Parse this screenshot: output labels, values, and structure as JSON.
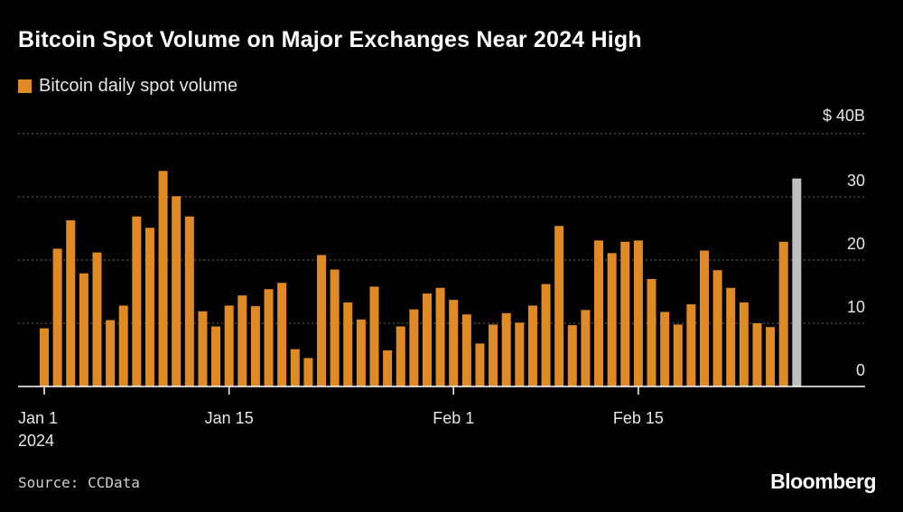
{
  "header": {
    "title": "Bitcoin Spot Volume on Major Exchanges Near 2024 High"
  },
  "legend": {
    "label": "Bitcoin daily spot volume"
  },
  "footer": {
    "source": "Source: CCData",
    "brand": "Bloomberg"
  },
  "colors": {
    "bar": "#e08a25",
    "highlight": "#c0c0c0",
    "grid": "#666666",
    "axis": "#ffffff",
    "text": "#e6e6e6"
  },
  "chart_data": {
    "type": "bar",
    "title": "Bitcoin Spot Volume on Major Exchanges Near 2024 High",
    "xlabel": "",
    "ylabel": "",
    "unit": "$B",
    "ylim": [
      0,
      40
    ],
    "yticks": [
      {
        "value": 40,
        "label": "$ 40B"
      },
      {
        "value": 30,
        "label": "30"
      },
      {
        "value": 20,
        "label": "20"
      },
      {
        "value": 10,
        "label": "10"
      },
      {
        "value": 0,
        "label": "0"
      }
    ],
    "xticks": [
      {
        "index": 0,
        "label": "Jan 1",
        "sublabel": "2024"
      },
      {
        "index": 14,
        "label": "Jan 15"
      },
      {
        "index": 31,
        "label": "Feb 1"
      },
      {
        "index": 45,
        "label": "Feb 15"
      }
    ],
    "categories": [
      "Jan 1",
      "Jan 2",
      "Jan 3",
      "Jan 4",
      "Jan 5",
      "Jan 6",
      "Jan 7",
      "Jan 8",
      "Jan 9",
      "Jan 10",
      "Jan 11",
      "Jan 12",
      "Jan 13",
      "Jan 14",
      "Jan 15",
      "Jan 16",
      "Jan 17",
      "Jan 18",
      "Jan 19",
      "Jan 20",
      "Jan 21",
      "Jan 22",
      "Jan 23",
      "Jan 24",
      "Jan 25",
      "Jan 26",
      "Jan 27",
      "Jan 28",
      "Jan 29",
      "Jan 30",
      "Jan 31",
      "Feb 1",
      "Feb 2",
      "Feb 3",
      "Feb 4",
      "Feb 5",
      "Feb 6",
      "Feb 7",
      "Feb 8",
      "Feb 9",
      "Feb 10",
      "Feb 11",
      "Feb 12",
      "Feb 13",
      "Feb 14",
      "Feb 15",
      "Feb 16",
      "Feb 17",
      "Feb 18",
      "Feb 19",
      "Feb 20",
      "Feb 21",
      "Feb 22",
      "Feb 23",
      "Feb 24",
      "Feb 25",
      "Feb 26",
      "Feb 27"
    ],
    "series": [
      {
        "name": "Bitcoin daily spot volume",
        "values": [
          9.2,
          21.8,
          26.3,
          17.9,
          21.2,
          10.5,
          12.8,
          26.9,
          25.1,
          34.1,
          30.1,
          26.9,
          11.9,
          9.5,
          12.8,
          14.4,
          12.7,
          15.4,
          16.4,
          5.9,
          4.5,
          20.8,
          18.5,
          13.3,
          10.6,
          15.8,
          5.7,
          9.5,
          12.2,
          14.7,
          15.6,
          13.7,
          11.4,
          6.8,
          9.8,
          11.6,
          10.1,
          12.8,
          16.2,
          25.4,
          9.7,
          12.1,
          23.1,
          21.1,
          22.9,
          23.1,
          17.0,
          11.8,
          9.8,
          13.0,
          21.5,
          18.4,
          15.6,
          13.3,
          10.0,
          9.4,
          22.9,
          32.9
        ],
        "highlight_last": true
      }
    ]
  }
}
